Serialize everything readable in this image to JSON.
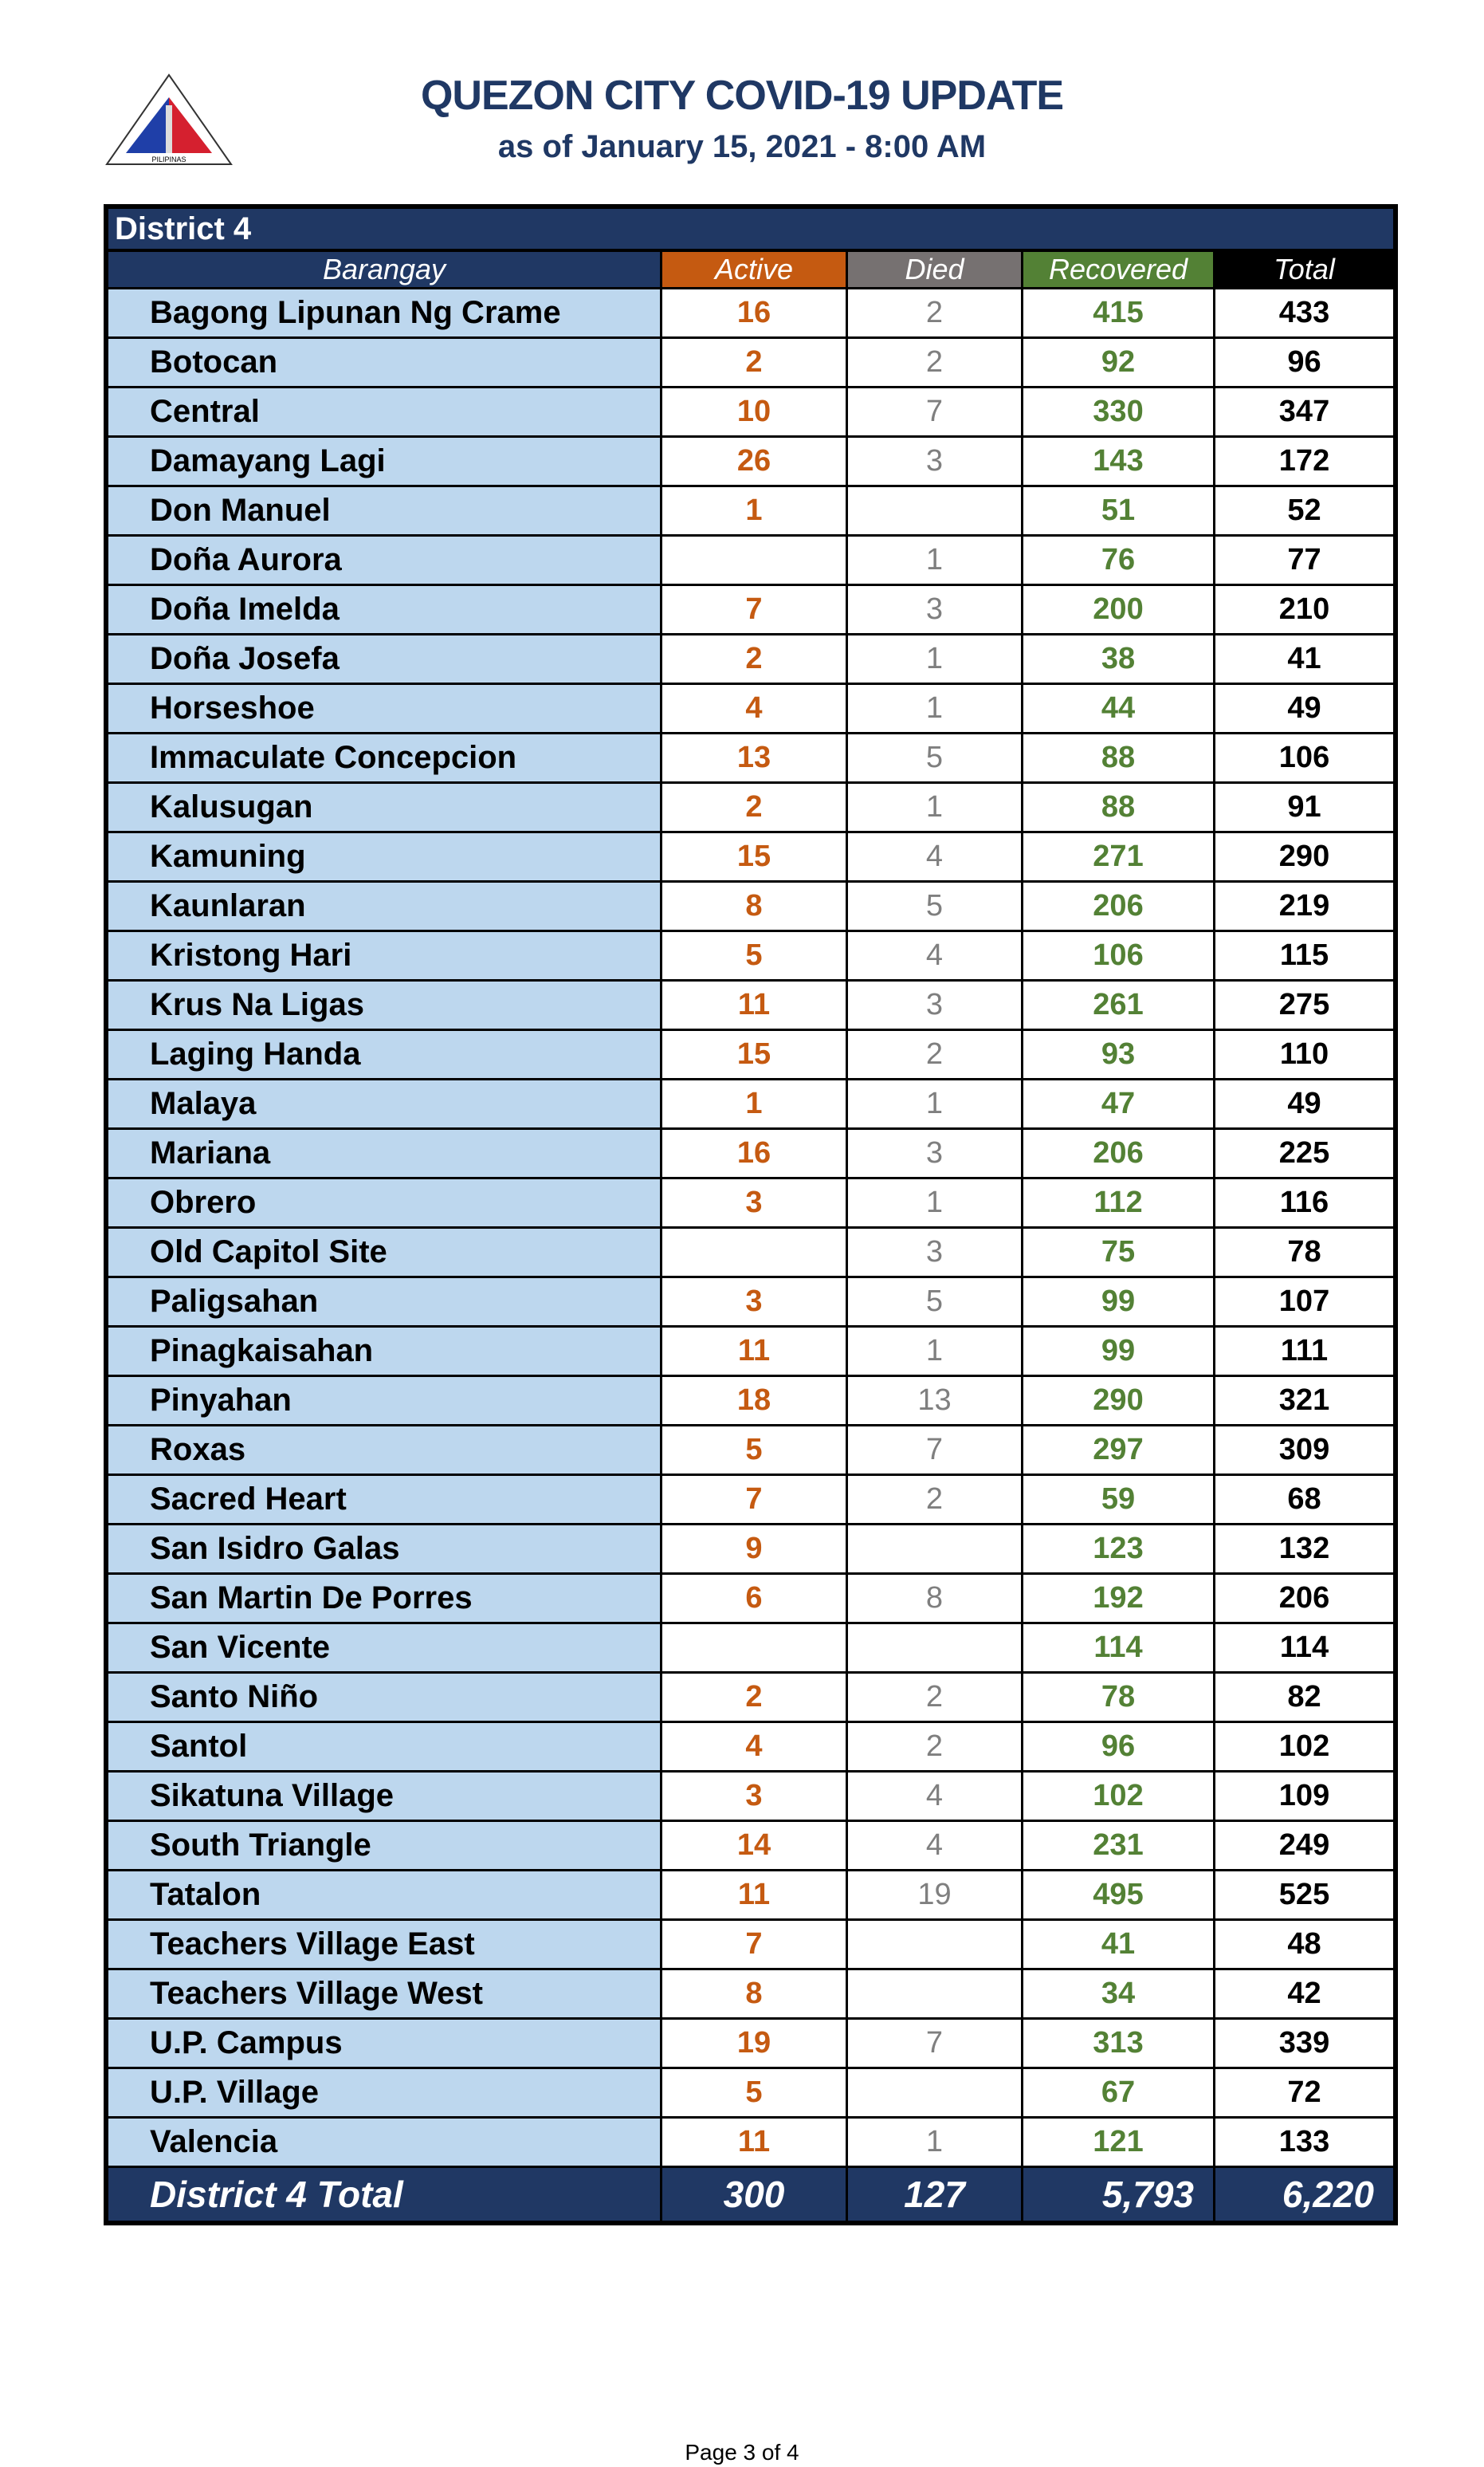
{
  "header": {
    "title": "QUEZON CITY COVID-19 UPDATE",
    "subtitle": "as of January 15, 2021 - 8:00 AM",
    "logo_text": "LUNGSOD QUEZON PILIPINAS"
  },
  "table": {
    "district": "District 4",
    "columns": [
      "Barangay",
      "Active",
      "Died",
      "Recovered",
      "Total"
    ],
    "column_colors": {
      "barangay": "#203864",
      "active": "#c55a11",
      "died": "#767171",
      "recovered": "#538135",
      "total": "#000000"
    },
    "rows": [
      [
        "Bagong Lipunan Ng Crame",
        "16",
        "2",
        "415",
        "433"
      ],
      [
        "Botocan",
        "2",
        "2",
        "92",
        "96"
      ],
      [
        "Central",
        "10",
        "7",
        "330",
        "347"
      ],
      [
        "Damayang Lagi",
        "26",
        "3",
        "143",
        "172"
      ],
      [
        "Don Manuel",
        "1",
        "",
        "51",
        "52"
      ],
      [
        "Doña Aurora",
        "",
        "1",
        "76",
        "77"
      ],
      [
        "Doña Imelda",
        "7",
        "3",
        "200",
        "210"
      ],
      [
        "Doña Josefa",
        "2",
        "1",
        "38",
        "41"
      ],
      [
        "Horseshoe",
        "4",
        "1",
        "44",
        "49"
      ],
      [
        "Immaculate Concepcion",
        "13",
        "5",
        "88",
        "106"
      ],
      [
        "Kalusugan",
        "2",
        "1",
        "88",
        "91"
      ],
      [
        "Kamuning",
        "15",
        "4",
        "271",
        "290"
      ],
      [
        "Kaunlaran",
        "8",
        "5",
        "206",
        "219"
      ],
      [
        "Kristong Hari",
        "5",
        "4",
        "106",
        "115"
      ],
      [
        "Krus Na Ligas",
        "11",
        "3",
        "261",
        "275"
      ],
      [
        "Laging Handa",
        "15",
        "2",
        "93",
        "110"
      ],
      [
        "Malaya",
        "1",
        "1",
        "47",
        "49"
      ],
      [
        "Mariana",
        "16",
        "3",
        "206",
        "225"
      ],
      [
        "Obrero",
        "3",
        "1",
        "112",
        "116"
      ],
      [
        "Old Capitol Site",
        "",
        "3",
        "75",
        "78"
      ],
      [
        "Paligsahan",
        "3",
        "5",
        "99",
        "107"
      ],
      [
        "Pinagkaisahan",
        "11",
        "1",
        "99",
        "111"
      ],
      [
        "Pinyahan",
        "18",
        "13",
        "290",
        "321"
      ],
      [
        "Roxas",
        "5",
        "7",
        "297",
        "309"
      ],
      [
        "Sacred Heart",
        "7",
        "2",
        "59",
        "68"
      ],
      [
        "San Isidro Galas",
        "9",
        "",
        "123",
        "132"
      ],
      [
        "San Martin De Porres",
        "6",
        "8",
        "192",
        "206"
      ],
      [
        "San Vicente",
        "",
        "",
        "114",
        "114"
      ],
      [
        "Santo Niño",
        "2",
        "2",
        "78",
        "82"
      ],
      [
        "Santol",
        "4",
        "2",
        "96",
        "102"
      ],
      [
        "Sikatuna Village",
        "3",
        "4",
        "102",
        "109"
      ],
      [
        "South Triangle",
        "14",
        "4",
        "231",
        "249"
      ],
      [
        "Tatalon",
        "11",
        "19",
        "495",
        "525"
      ],
      [
        "Teachers Village East",
        "7",
        "",
        "41",
        "48"
      ],
      [
        "Teachers Village West",
        "8",
        "",
        "34",
        "42"
      ],
      [
        "U.P. Campus",
        "19",
        "7",
        "313",
        "339"
      ],
      [
        "U.P. Village",
        "5",
        "",
        "67",
        "72"
      ],
      [
        "Valencia",
        "11",
        "1",
        "121",
        "133"
      ]
    ],
    "total": [
      "District 4 Total",
      "300",
      "127",
      "5,793",
      "6,220"
    ]
  },
  "footer": {
    "page": "Page 3 of 4"
  }
}
